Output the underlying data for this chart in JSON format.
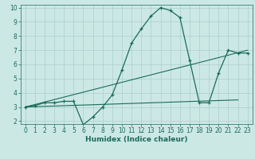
{
  "xlabel": "Humidex (Indice chaleur)",
  "bg_color": "#cce8e5",
  "grid_color": "#aacfcc",
  "line_color": "#1a6b5a",
  "xlim": [
    -0.5,
    23.5
  ],
  "ylim": [
    1.8,
    10.2
  ],
  "xticks": [
    0,
    1,
    2,
    3,
    4,
    5,
    6,
    7,
    8,
    9,
    10,
    11,
    12,
    13,
    14,
    15,
    16,
    17,
    18,
    19,
    20,
    21,
    22,
    23
  ],
  "yticks": [
    2,
    3,
    4,
    5,
    6,
    7,
    8,
    9,
    10
  ],
  "line1_x": [
    0,
    1,
    2,
    3,
    4,
    5,
    6,
    7,
    8,
    9,
    10,
    11,
    12,
    13,
    14,
    15,
    16,
    17,
    18,
    19,
    20,
    21,
    22,
    23
  ],
  "line1_y": [
    3.0,
    3.1,
    3.3,
    3.3,
    3.4,
    3.4,
    1.75,
    2.3,
    3.0,
    3.85,
    5.6,
    7.5,
    8.5,
    9.4,
    10.0,
    9.8,
    9.3,
    6.3,
    3.3,
    3.3,
    5.4,
    7.0,
    6.8,
    6.8
  ],
  "line2_x": [
    0,
    23
  ],
  "line2_y": [
    3.0,
    7.0
  ],
  "line3_x": [
    0,
    22
  ],
  "line3_y": [
    3.0,
    3.5
  ],
  "tick_fontsize": 5.5,
  "xlabel_fontsize": 6.5
}
